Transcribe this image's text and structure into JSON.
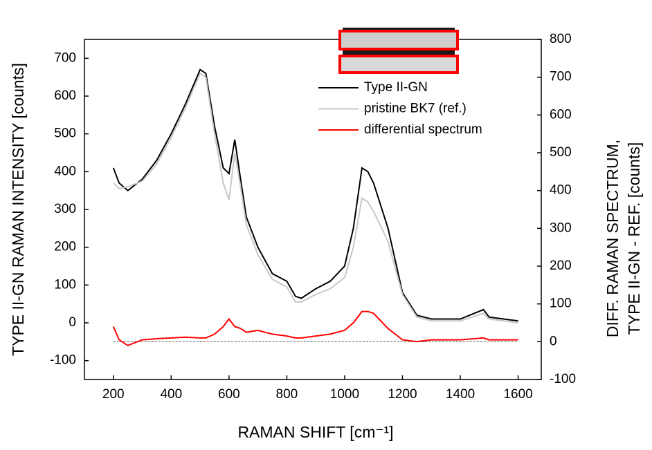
{
  "chart_data": {
    "type": "line",
    "xlabel": "RAMAN SHIFT [cm⁻¹]",
    "ylabel": "TYPE II-GN RAMAN INTENSITY [counts]",
    "y2label": [
      "DIFF. RAMAN SPECTRUM,",
      "TYPE II-GN - REF. [counts]"
    ],
    "x": [
      200,
      220,
      250,
      300,
      350,
      400,
      450,
      500,
      520,
      550,
      580,
      600,
      620,
      640,
      660,
      700,
      750,
      800,
      830,
      850,
      900,
      950,
      1000,
      1030,
      1060,
      1080,
      1100,
      1150,
      1200,
      1250,
      1300,
      1400,
      1480,
      1500,
      1600
    ],
    "series": [
      {
        "name": "Type II-GN",
        "color": "#000000",
        "axis": "y",
        "values": [
          410,
          370,
          350,
          380,
          430,
          500,
          580,
          670,
          660,
          520,
          410,
          395,
          485,
          380,
          280,
          200,
          130,
          110,
          70,
          65,
          90,
          110,
          150,
          250,
          410,
          400,
          370,
          250,
          80,
          20,
          10,
          10,
          35,
          15,
          5
        ]
      },
      {
        "name": "pristine BK7 (ref.)",
        "color": "#c8c8c8",
        "axis": "y",
        "values": [
          370,
          355,
          360,
          375,
          420,
          490,
          570,
          660,
          650,
          500,
          370,
          325,
          450,
          360,
          260,
          180,
          115,
          95,
          55,
          55,
          75,
          90,
          120,
          200,
          330,
          320,
          295,
          215,
          75,
          15,
          5,
          5,
          25,
          10,
          0
        ]
      },
      {
        "name": "differential spectrum",
        "color": "#ff0000",
        "axis": "y2",
        "values": [
          40,
          5,
          -10,
          5,
          8,
          10,
          12,
          10,
          10,
          20,
          40,
          60,
          40,
          35,
          25,
          30,
          20,
          15,
          10,
          10,
          15,
          20,
          30,
          50,
          80,
          80,
          75,
          35,
          5,
          0,
          5,
          5,
          10,
          5,
          5
        ]
      }
    ],
    "xlim": [
      100,
      1680
    ],
    "xticks": [
      200,
      400,
      600,
      800,
      1000,
      1200,
      1400,
      1600
    ],
    "ylim": [
      -150,
      750
    ],
    "yticks": [
      -100,
      0,
      100,
      200,
      300,
      400,
      500,
      600,
      700
    ],
    "y2lim": [
      -100,
      800
    ],
    "y2ticks": [
      -100,
      0,
      100,
      200,
      300,
      400,
      500,
      600,
      700,
      800
    ],
    "y2_reference": 0
  }
}
